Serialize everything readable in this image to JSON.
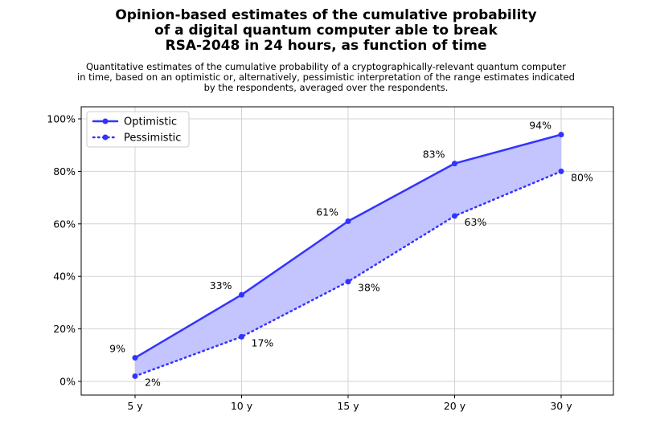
{
  "chart_data": {
    "type": "line",
    "title_lines": [
      "Opinion-based estimates of the cumulative probability",
      "of a digital quantum computer able to break",
      "RSA-2048 in 24 hours, as function of time"
    ],
    "subtitle_lines": [
      "Quantitative estimates of the cumulative probability of a cryptographically-relevant quantum computer",
      "in time, based on an optimistic or, alternatively, pessimistic interpretation of the range estimates indicated",
      "by the respondents, averaged over the respondents."
    ],
    "categories": [
      "5 y",
      "10 y",
      "15 y",
      "20 y",
      "30 y"
    ],
    "series": [
      {
        "name": "Optimistic",
        "values": [
          9,
          33,
          61,
          83,
          94
        ],
        "labels": [
          "9%",
          "33%",
          "61%",
          "83%",
          "94%"
        ],
        "style": "solid"
      },
      {
        "name": "Pessimistic",
        "values": [
          2,
          17,
          38,
          63,
          80
        ],
        "labels": [
          "2%",
          "17%",
          "38%",
          "63%",
          "80%"
        ],
        "style": "dotted"
      }
    ],
    "ylim": [
      0,
      100
    ],
    "yticks": [
      0,
      20,
      40,
      60,
      80,
      100
    ],
    "ytick_labels": [
      "0%",
      "20%",
      "40%",
      "60%",
      "80%",
      "100%"
    ],
    "grid": true,
    "legend_position": "top-left",
    "colors": {
      "line": "#3333ff",
      "fill": "#c4c4ff"
    }
  }
}
